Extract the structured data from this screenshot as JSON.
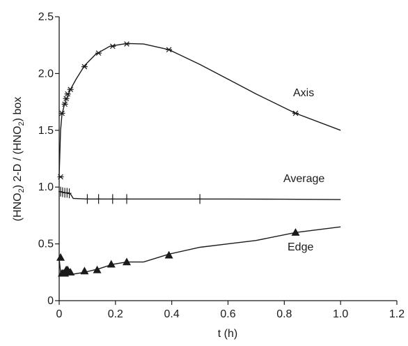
{
  "chart_data": {
    "type": "line",
    "title": "",
    "xlabel": "t (h)",
    "ylabel_parts": [
      "(HNO",
      "2",
      ") 2-D / (HNO",
      "2",
      ") box"
    ],
    "xlim": [
      0,
      1.2
    ],
    "ylim": [
      0,
      2.5
    ],
    "x_ticks": [
      0,
      0.2,
      0.4,
      0.6,
      0.8,
      1.0,
      1.2
    ],
    "x_tick_labels": [
      "0",
      "0.2",
      "0.4",
      "0.6",
      "0.8",
      "1.0",
      "1.2"
    ],
    "y_ticks": [
      0,
      0.5,
      1.0,
      1.5,
      2.0,
      2.5
    ],
    "y_tick_labels": [
      "0",
      "0.5",
      "1.0",
      "1.5",
      "2.0",
      "2.5"
    ],
    "grid": false,
    "series": [
      {
        "name": "Axis",
        "marker": "star",
        "curve": {
          "x": [
            0,
            0.005,
            0.01,
            0.02,
            0.03,
            0.04,
            0.06,
            0.09,
            0.13,
            0.18,
            0.24,
            0.3,
            0.39,
            0.5,
            0.6,
            0.7,
            0.84,
            1.0
          ],
          "y": [
            1.1,
            1.5,
            1.64,
            1.74,
            1.8,
            1.86,
            1.95,
            2.07,
            2.17,
            2.24,
            2.265,
            2.26,
            2.21,
            2.08,
            1.95,
            1.82,
            1.65,
            1.5
          ]
        },
        "points": {
          "x": [
            0.005,
            0.01,
            0.02,
            0.025,
            0.03,
            0.04,
            0.09,
            0.14,
            0.19,
            0.24,
            0.39,
            0.84
          ],
          "y": [
            1.09,
            1.65,
            1.73,
            1.78,
            1.82,
            1.86,
            2.06,
            2.18,
            2.24,
            2.26,
            2.21,
            1.65
          ]
        }
      },
      {
        "name": "Average",
        "marker": "plus",
        "curve": {
          "x": [
            0,
            0.01,
            0.02,
            0.03,
            0.04,
            0.05,
            0.1,
            0.2,
            0.4,
            0.6,
            0.8,
            1.0
          ],
          "y": [
            0.96,
            0.955,
            0.95,
            0.945,
            0.94,
            0.9,
            0.895,
            0.895,
            0.895,
            0.895,
            0.893,
            0.89
          ]
        },
        "points": {
          "x": [
            0.005,
            0.012,
            0.02,
            0.028,
            0.036,
            0.1,
            0.14,
            0.19,
            0.24,
            0.5
          ],
          "y": [
            0.96,
            0.955,
            0.95,
            0.95,
            0.945,
            0.895,
            0.895,
            0.895,
            0.895,
            0.895
          ]
        }
      },
      {
        "name": "Edge",
        "marker": "triangle",
        "curve": {
          "x": [
            0,
            0.005,
            0.01,
            0.02,
            0.03,
            0.04,
            0.09,
            0.14,
            0.19,
            0.24,
            0.3,
            0.39,
            0.5,
            0.6,
            0.7,
            0.84,
            1.0
          ],
          "y": [
            0.37,
            0.25,
            0.23,
            0.23,
            0.24,
            0.23,
            0.25,
            0.28,
            0.32,
            0.34,
            0.34,
            0.41,
            0.47,
            0.5,
            0.53,
            0.6,
            0.65
          ]
        },
        "points": {
          "x": [
            0.005,
            0.01,
            0.015,
            0.02,
            0.025,
            0.03,
            0.04,
            0.09,
            0.135,
            0.185,
            0.24,
            0.39,
            0.84
          ],
          "y": [
            0.38,
            0.24,
            0.24,
            0.24,
            0.27,
            0.27,
            0.25,
            0.26,
            0.27,
            0.32,
            0.34,
            0.4,
            0.6
          ]
        }
      }
    ],
    "annotations": [
      "Axis",
      "Average",
      "Edge"
    ]
  }
}
